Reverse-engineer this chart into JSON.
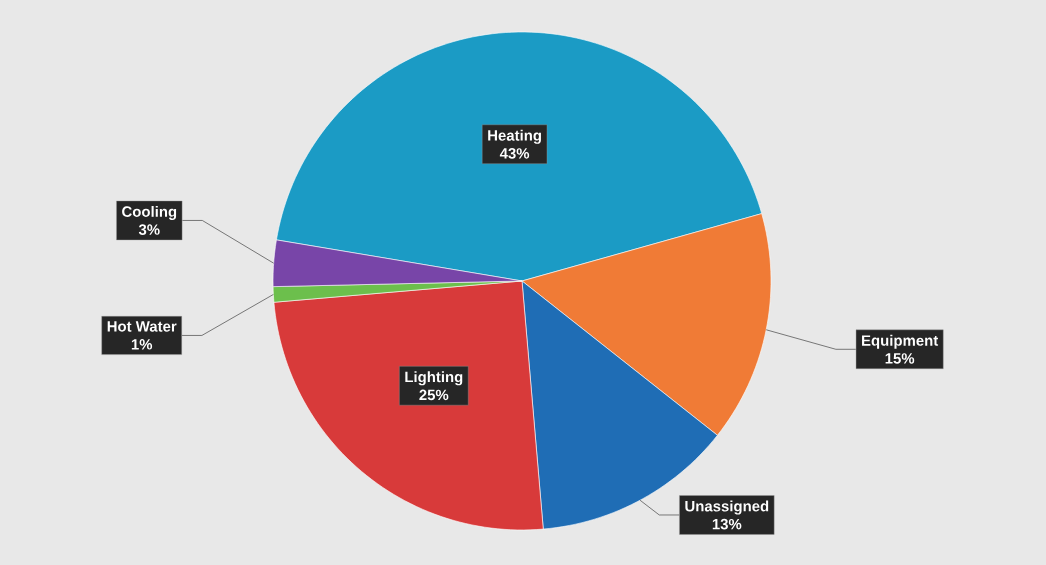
{
  "chart_data": {
    "type": "pie",
    "categories": [
      "Heating",
      "Equipment",
      "Unassigned",
      "Lighting",
      "Hot Water",
      "Cooling"
    ],
    "values": [
      43,
      15,
      13,
      25,
      1,
      3
    ],
    "value_labels": [
      "43%",
      "15%",
      "13%",
      "25%",
      "1%",
      "3%"
    ],
    "colors": [
      "#1b9bc5",
      "#f07b36",
      "#1f6db5",
      "#d83a3a",
      "#6cbf4c",
      "#7845a8"
    ]
  }
}
